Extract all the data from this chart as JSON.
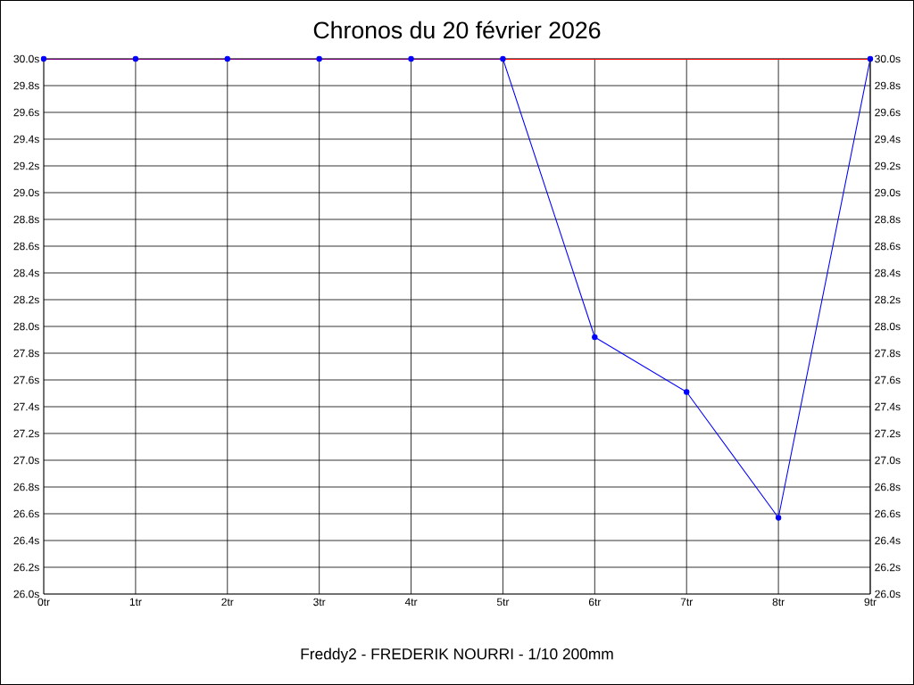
{
  "chart_data": {
    "type": "line",
    "title": "Chronos du 20 février 2026",
    "x": [
      0,
      1,
      2,
      3,
      4,
      5,
      6,
      7,
      8,
      9
    ],
    "values": [
      30.0,
      30.0,
      30.0,
      30.0,
      30.0,
      30.0,
      27.92,
      27.51,
      26.57,
      30.0
    ],
    "color": "#0000ff",
    "marker": "circle",
    "line_style": "solid",
    "grid": true,
    "xlim": [
      0,
      9
    ],
    "xticks": [
      {
        "value": 0,
        "label": "0tr"
      },
      {
        "value": 1,
        "label": "1tr"
      },
      {
        "value": 2,
        "label": "2tr"
      },
      {
        "value": 3,
        "label": "3tr"
      },
      {
        "value": 4,
        "label": "4tr"
      },
      {
        "value": 5,
        "label": "5tr"
      },
      {
        "value": 6,
        "label": "6tr"
      },
      {
        "value": 7,
        "label": "7tr"
      },
      {
        "value": 8,
        "label": "8tr"
      },
      {
        "value": 9,
        "label": "9tr"
      }
    ],
    "ylim": [
      26.0,
      30.0
    ],
    "yticks": [
      {
        "value": 26.0,
        "label": "26.0s"
      },
      {
        "value": 26.2,
        "label": "26.2s"
      },
      {
        "value": 26.4,
        "label": "26.4s"
      },
      {
        "value": 26.6,
        "label": "26.6s"
      },
      {
        "value": 26.8,
        "label": "26.8s"
      },
      {
        "value": 27.0,
        "label": "27.0s"
      },
      {
        "value": 27.2,
        "label": "27.2s"
      },
      {
        "value": 27.4,
        "label": "27.4s"
      },
      {
        "value": 27.6,
        "label": "27.6s"
      },
      {
        "value": 27.8,
        "label": "27.8s"
      },
      {
        "value": 28.0,
        "label": "28.0s"
      },
      {
        "value": 28.2,
        "label": "28.2s"
      },
      {
        "value": 28.4,
        "label": "28.4s"
      },
      {
        "value": 28.6,
        "label": "28.6s"
      },
      {
        "value": 28.8,
        "label": "28.8s"
      },
      {
        "value": 29.0,
        "label": "29.0s"
      },
      {
        "value": 29.2,
        "label": "29.2s"
      },
      {
        "value": 29.4,
        "label": "29.4s"
      },
      {
        "value": 29.6,
        "label": "29.6s"
      },
      {
        "value": 29.8,
        "label": "29.8s"
      },
      {
        "value": 30.0,
        "label": "30.0s"
      }
    ],
    "y2lim": [
      26.0,
      30.0
    ],
    "y2ticks": [
      {
        "value": 26.0,
        "label": "26.0s"
      },
      {
        "value": 26.2,
        "label": "26.2s"
      },
      {
        "value": 26.4,
        "label": "26.4s"
      },
      {
        "value": 26.6,
        "label": "26.6s"
      },
      {
        "value": 26.8,
        "label": "26.8s"
      },
      {
        "value": 27.0,
        "label": "27.0s"
      },
      {
        "value": 27.2,
        "label": "27.2s"
      },
      {
        "value": 27.4,
        "label": "27.4s"
      },
      {
        "value": 27.6,
        "label": "27.6s"
      },
      {
        "value": 27.8,
        "label": "27.8s"
      },
      {
        "value": 28.0,
        "label": "28.0s"
      },
      {
        "value": 28.2,
        "label": "28.2s"
      },
      {
        "value": 28.4,
        "label": "28.4s"
      },
      {
        "value": 28.6,
        "label": "28.6s"
      },
      {
        "value": 28.8,
        "label": "28.8s"
      },
      {
        "value": 29.0,
        "label": "29.0s"
      },
      {
        "value": 29.2,
        "label": "29.2s"
      },
      {
        "value": 29.4,
        "label": "29.4s"
      },
      {
        "value": 29.6,
        "label": "29.6s"
      },
      {
        "value": 29.8,
        "label": "29.8s"
      },
      {
        "value": 30.0,
        "label": "30.0s"
      }
    ],
    "ref_lines": [
      {
        "axis": "y",
        "value": 30.0,
        "color": "#ff0000"
      }
    ],
    "annotations": [
      "Freddy2 - FREDERIK NOURRI - 1/10 200mm"
    ]
  }
}
